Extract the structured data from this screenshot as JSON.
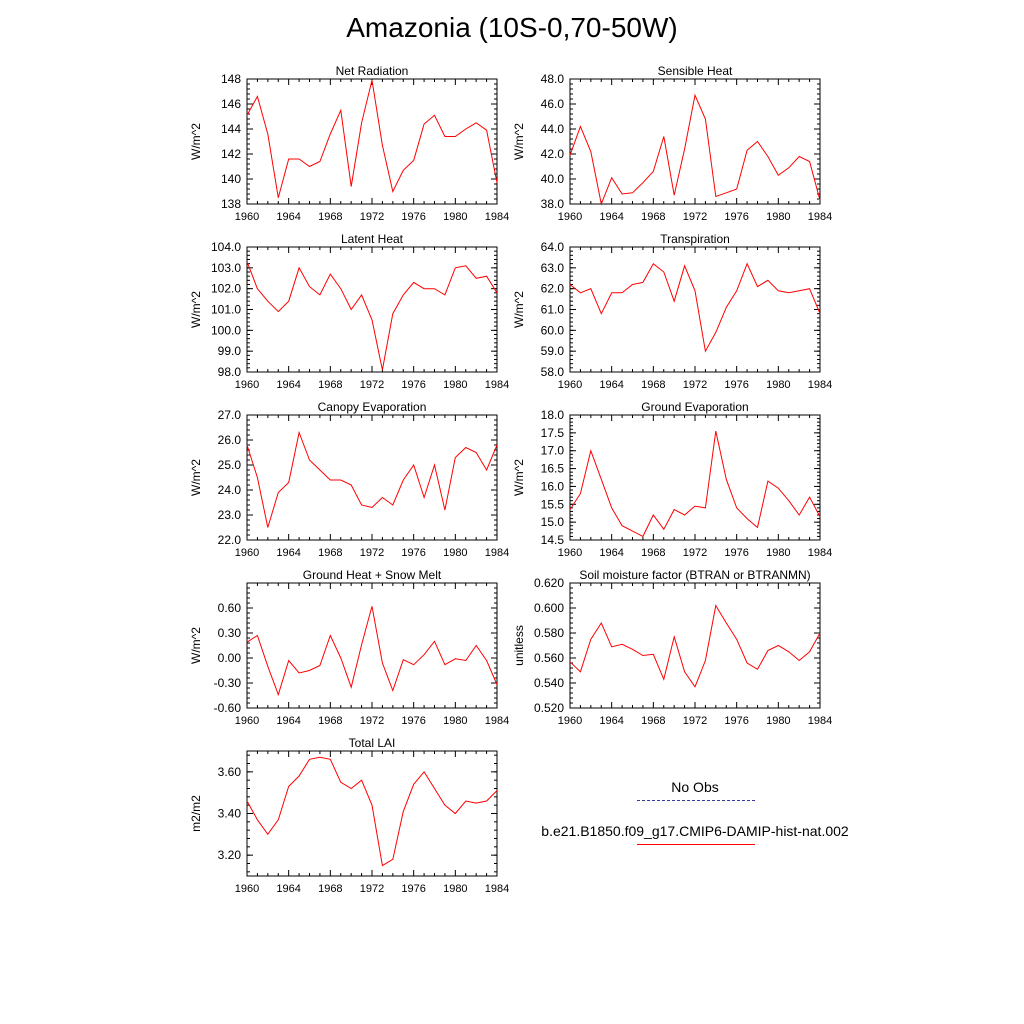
{
  "title": "Amazonia (10S-0,70-50W)",
  "colors": {
    "series": "#ff0000",
    "obs": "#3a3a9e"
  },
  "legend": {
    "items": [
      {
        "label": "No Obs",
        "style": "dashed"
      },
      {
        "label": "b.e21.B1850.f09_g17.CMIP6-DAMIP-hist-nat.002",
        "style": "solid"
      }
    ]
  },
  "chart_data": [
    {
      "type": "line",
      "title": "Net Radiation",
      "ylabel": "W/m^2",
      "xlim": [
        1960,
        1984
      ],
      "xticks": [
        1960,
        1964,
        1968,
        1972,
        1976,
        1980,
        1984
      ],
      "ylim": [
        138,
        148
      ],
      "yticks": [
        138,
        140,
        142,
        144,
        146,
        148
      ],
      "ytick_labels": [
        "138",
        "140",
        "142",
        "144",
        "146",
        "148"
      ],
      "x_start": 1960,
      "values": [
        145.1,
        146.6,
        143.6,
        138.5,
        141.6,
        141.6,
        141.0,
        141.4,
        143.6,
        145.5,
        139.4,
        144.5,
        147.9,
        142.7,
        139.0,
        140.7,
        141.5,
        144.4,
        145.1,
        143.4,
        143.4,
        144.0,
        144.5,
        143.9,
        139.7
      ]
    },
    {
      "type": "line",
      "title": "Sensible Heat",
      "ylabel": "W/m^2",
      "xlim": [
        1960,
        1984
      ],
      "xticks": [
        1960,
        1964,
        1968,
        1972,
        1976,
        1980,
        1984
      ],
      "ylim": [
        38,
        48
      ],
      "yticks": [
        38,
        40,
        42,
        44,
        46,
        48
      ],
      "ytick_labels": [
        "38.0",
        "40.0",
        "42.0",
        "44.0",
        "46.0",
        "48.0"
      ],
      "x_start": 1960,
      "values": [
        41.9,
        44.2,
        42.2,
        38.0,
        40.1,
        38.8,
        38.9,
        39.7,
        40.6,
        43.4,
        38.7,
        42.4,
        46.7,
        44.8,
        38.6,
        38.9,
        39.2,
        42.3,
        43.0,
        41.8,
        40.3,
        40.9,
        41.8,
        41.4,
        38.3
      ]
    },
    {
      "type": "line",
      "title": "Latent Heat",
      "ylabel": "W/m^2",
      "xlim": [
        1960,
        1984
      ],
      "xticks": [
        1960,
        1964,
        1968,
        1972,
        1976,
        1980,
        1984
      ],
      "ylim": [
        98,
        104
      ],
      "yticks": [
        98,
        99,
        100,
        101,
        102,
        103,
        104
      ],
      "ytick_labels": [
        "98.0",
        "99.0",
        "100.0",
        "101.0",
        "102.0",
        "103.0",
        "104.0"
      ],
      "x_start": 1960,
      "values": [
        103.3,
        102.0,
        101.4,
        100.9,
        101.4,
        103.0,
        102.1,
        101.7,
        102.7,
        102.0,
        101.0,
        101.7,
        100.5,
        98.1,
        100.8,
        101.7,
        102.3,
        102.0,
        102.0,
        101.7,
        103.0,
        103.1,
        102.5,
        102.6,
        101.8
      ]
    },
    {
      "type": "line",
      "title": "Transpiration",
      "ylabel": "W/m^2",
      "xlim": [
        1960,
        1984
      ],
      "xticks": [
        1960,
        1964,
        1968,
        1972,
        1976,
        1980,
        1984
      ],
      "ylim": [
        58,
        64
      ],
      "yticks": [
        58,
        59,
        60,
        61,
        62,
        63,
        64
      ],
      "ytick_labels": [
        "58.0",
        "59.0",
        "60.0",
        "61.0",
        "62.0",
        "63.0",
        "64.0"
      ],
      "x_start": 1960,
      "values": [
        62.2,
        61.8,
        62.0,
        60.8,
        61.8,
        61.8,
        62.2,
        62.3,
        63.2,
        62.8,
        61.4,
        63.1,
        61.9,
        59.0,
        59.9,
        61.1,
        61.9,
        63.2,
        62.1,
        62.4,
        61.9,
        61.8,
        61.9,
        62.0,
        60.8
      ]
    },
    {
      "type": "line",
      "title": "Canopy Evaporation",
      "ylabel": "W/m^2",
      "xlim": [
        1960,
        1984
      ],
      "xticks": [
        1960,
        1964,
        1968,
        1972,
        1976,
        1980,
        1984
      ],
      "ylim": [
        22,
        27
      ],
      "yticks": [
        22,
        23,
        24,
        25,
        26,
        27
      ],
      "ytick_labels": [
        "22.0",
        "23.0",
        "24.0",
        "25.0",
        "26.0",
        "27.0"
      ],
      "x_start": 1960,
      "values": [
        25.8,
        24.5,
        22.5,
        23.9,
        24.3,
        26.3,
        25.2,
        24.8,
        24.4,
        24.4,
        24.2,
        23.4,
        23.3,
        23.7,
        23.4,
        24.4,
        25.0,
        23.7,
        25.0,
        23.2,
        25.3,
        25.7,
        25.5,
        24.8,
        25.8
      ]
    },
    {
      "type": "line",
      "title": "Ground Evaporation",
      "ylabel": "W/m^2",
      "xlim": [
        1960,
        1984
      ],
      "xticks": [
        1960,
        1964,
        1968,
        1972,
        1976,
        1980,
        1984
      ],
      "ylim": [
        14.5,
        18
      ],
      "yticks": [
        14.5,
        15,
        15.5,
        16,
        16.5,
        17,
        17.5,
        18
      ],
      "ytick_labels": [
        "14.5",
        "15.0",
        "15.5",
        "16.0",
        "16.5",
        "17.0",
        "17.5",
        "18.0"
      ],
      "x_start": 1960,
      "values": [
        15.35,
        15.8,
        17.0,
        16.2,
        15.4,
        14.9,
        14.75,
        14.6,
        15.2,
        14.8,
        15.35,
        15.2,
        15.45,
        15.4,
        17.55,
        16.2,
        15.4,
        15.1,
        14.85,
        16.15,
        15.95,
        15.6,
        15.2,
        15.7,
        15.15
      ]
    },
    {
      "type": "line",
      "title": "Ground Heat + Snow Melt",
      "ylabel": "W/m^2",
      "xlim": [
        1960,
        1984
      ],
      "xticks": [
        1960,
        1964,
        1968,
        1972,
        1976,
        1980,
        1984
      ],
      "ylim": [
        -0.6,
        0.9
      ],
      "yticks": [
        -0.6,
        -0.3,
        0,
        0.3,
        0.6
      ],
      "ytick_labels": [
        "-0.60",
        "-0.30",
        "0.00",
        "0.30",
        "0.60"
      ],
      "x_start": 1960,
      "values": [
        0.19,
        0.27,
        -0.1,
        -0.44,
        -0.03,
        -0.18,
        -0.15,
        -0.09,
        0.27,
        0.0,
        -0.35,
        0.16,
        0.62,
        -0.06,
        -0.39,
        -0.02,
        -0.08,
        0.04,
        0.2,
        -0.08,
        -0.01,
        -0.03,
        0.15,
        -0.03,
        -0.32
      ]
    },
    {
      "type": "line",
      "title": "Soil moisture factor (BTRAN or BTRANMN)",
      "ylabel": "unitless",
      "xlim": [
        1960,
        1984
      ],
      "xticks": [
        1960,
        1964,
        1968,
        1972,
        1976,
        1980,
        1984
      ],
      "ylim": [
        0.52,
        0.62
      ],
      "yticks": [
        0.52,
        0.54,
        0.56,
        0.58,
        0.6,
        0.62
      ],
      "ytick_labels": [
        "0.520",
        "0.540",
        "0.560",
        "0.580",
        "0.600",
        "0.620"
      ],
      "x_start": 1960,
      "values": [
        0.557,
        0.549,
        0.575,
        0.588,
        0.569,
        0.571,
        0.567,
        0.562,
        0.563,
        0.543,
        0.577,
        0.549,
        0.537,
        0.558,
        0.602,
        0.588,
        0.575,
        0.556,
        0.551,
        0.566,
        0.57,
        0.565,
        0.558,
        0.565,
        0.58
      ]
    },
    {
      "type": "line",
      "title": "Total LAI",
      "ylabel": "m2/m2",
      "xlim": [
        1960,
        1984
      ],
      "xticks": [
        1960,
        1964,
        1968,
        1972,
        1976,
        1980,
        1984
      ],
      "ylim": [
        3.1,
        3.7
      ],
      "yticks": [
        3.2,
        3.4,
        3.6
      ],
      "ytick_labels": [
        "3.20",
        "3.40",
        "3.60"
      ],
      "x_start": 1960,
      "values": [
        3.46,
        3.37,
        3.3,
        3.37,
        3.53,
        3.58,
        3.66,
        3.67,
        3.66,
        3.55,
        3.52,
        3.56,
        3.44,
        3.15,
        3.18,
        3.41,
        3.54,
        3.6,
        3.52,
        3.44,
        3.4,
        3.46,
        3.45,
        3.46,
        3.51
      ]
    }
  ]
}
